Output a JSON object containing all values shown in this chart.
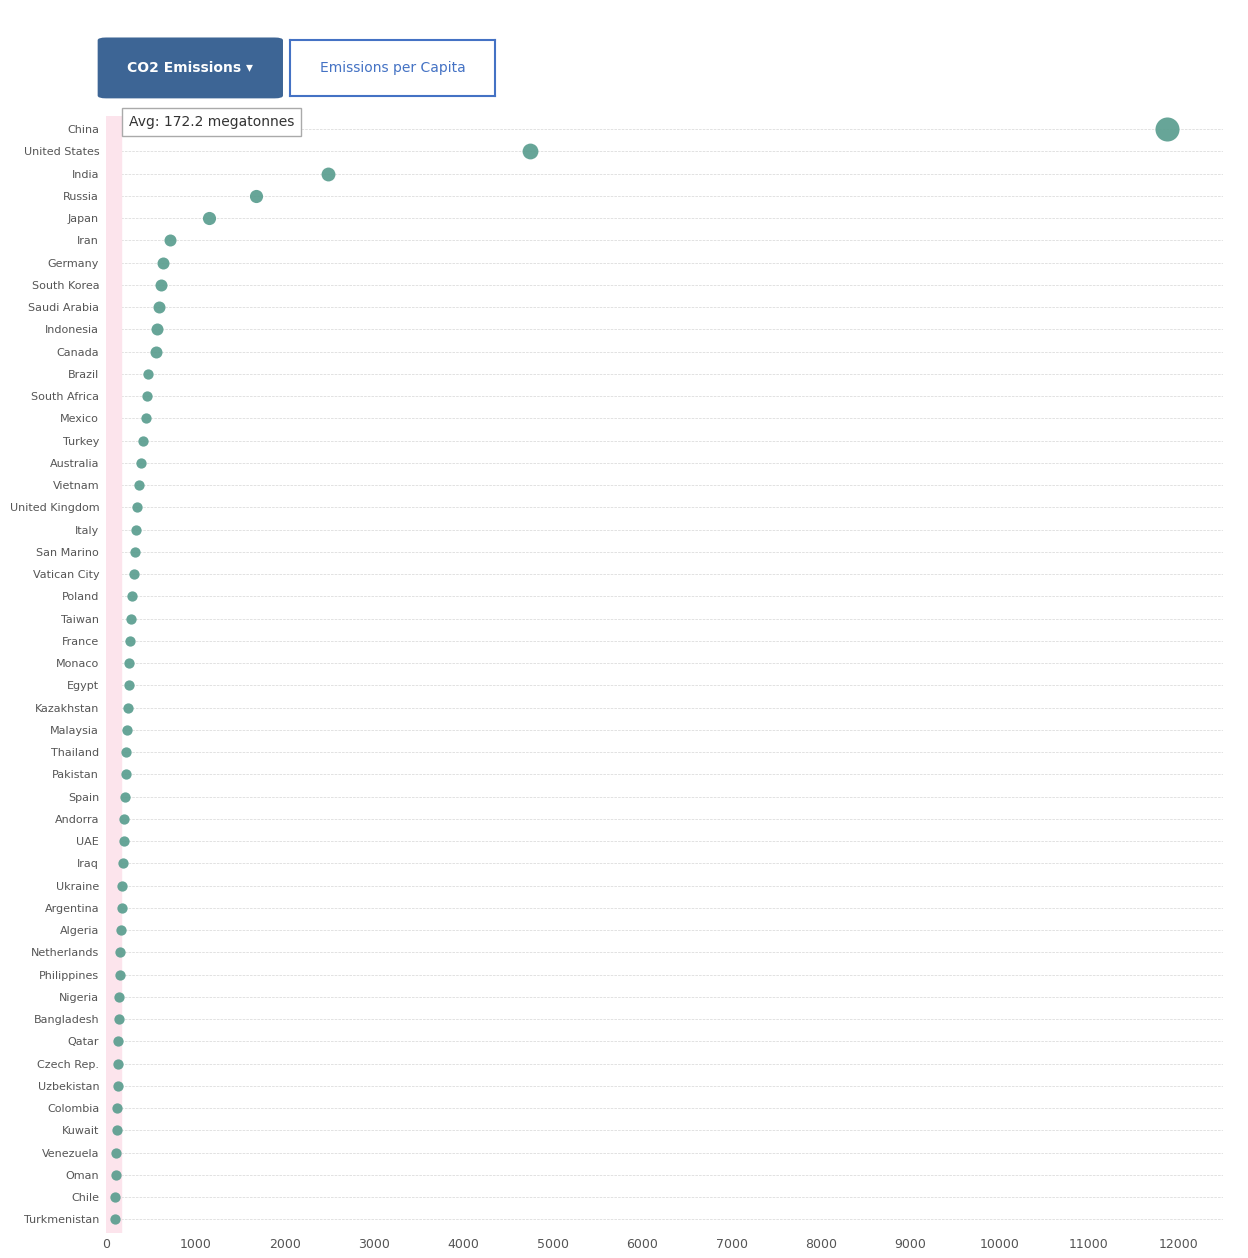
{
  "countries": [
    "China",
    "United States",
    "India",
    "Russia",
    "Japan",
    "Iran",
    "Germany",
    "South Korea",
    "Saudi Arabia",
    "Indonesia",
    "Canada",
    "Brazil",
    "South Africa",
    "Mexico",
    "Turkey",
    "Australia",
    "Vietnam",
    "United Kingdom",
    "Italy",
    "San Marino",
    "Vatican City",
    "Poland",
    "Taiwan",
    "France",
    "Monaco",
    "Egypt",
    "Kazakhstan",
    "Malaysia",
    "Thailand",
    "Pakistan",
    "Spain",
    "Andorra",
    "UAE",
    "Iraq",
    "Ukraine",
    "Argentina",
    "Algeria",
    "Netherlands",
    "Philippines",
    "Nigeria",
    "Bangladesh",
    "Qatar",
    "Czech Rep.",
    "Uzbekistan",
    "Colombia",
    "Kuwait",
    "Venezuela",
    "Oman",
    "Chile",
    "Turkmenistan"
  ],
  "values": [
    11877,
    4745,
    2480,
    1674,
    1153,
    720,
    636,
    620,
    588,
    572,
    555,
    471,
    454,
    444,
    412,
    393,
    370,
    349,
    335,
    320,
    308,
    295,
    283,
    272,
    262,
    252,
    244,
    235,
    228,
    218,
    210,
    202,
    196,
    188,
    180,
    173,
    167,
    161,
    155,
    149,
    143,
    138,
    133,
    128,
    123,
    118,
    113,
    108,
    103,
    98
  ],
  "avg_value": 172.2,
  "avg_label": "Avg: 172.2 megatonnes",
  "dot_color": "#5a9e8f",
  "avg_fill_color": "#fce4ec",
  "background_color": "#ffffff",
  "grid_color": "#cccccc",
  "axis_label_color": "#555555",
  "button1_text": "CO2 Emissions ▾",
  "button1_bg": "#3d6595",
  "button1_fg": "#ffffff",
  "button2_text": "Emissions per Capita",
  "button2_bg": "#ffffff",
  "button2_fg": "#4472c4",
  "button2_border": "#4472c4",
  "xlim": [
    0,
    12500
  ],
  "xtick_max": 12000,
  "xtick_step": 1000
}
